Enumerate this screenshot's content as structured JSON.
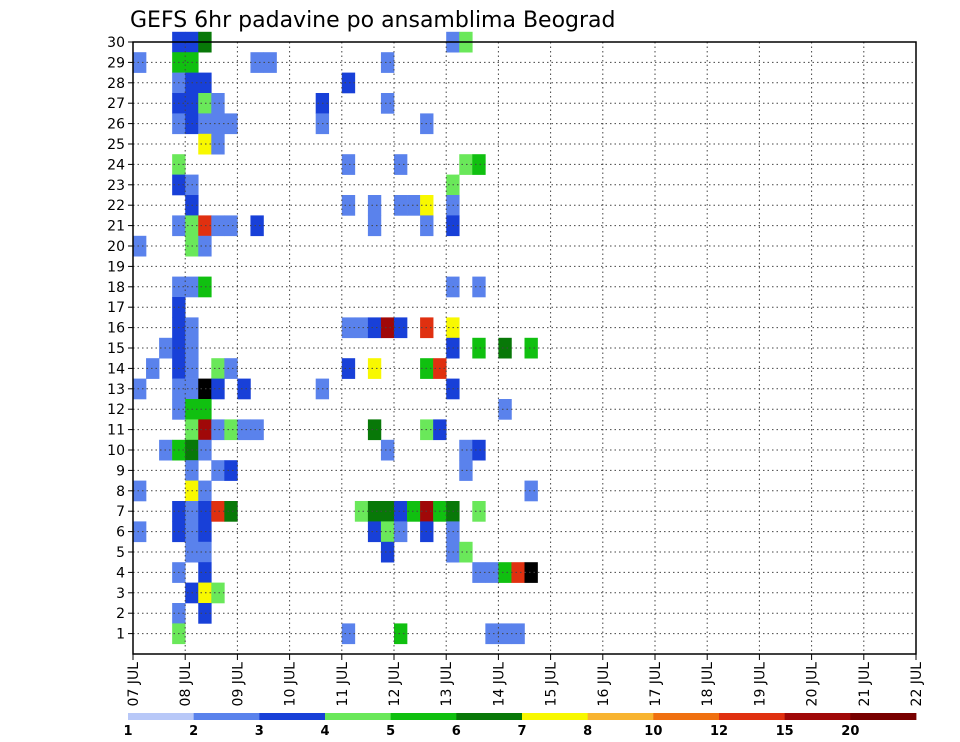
{
  "chart_data": {
    "type": "heatmap",
    "title": "GEFS 6hr padavine po ansamblima Beograd",
    "xlabel": "",
    "ylabel": "",
    "x_tick_labels": [
      "07 JUL",
      "08 JUL",
      "09 JUL",
      "10 JUL",
      "11 JUL",
      "12 JUL",
      "13 JUL",
      "14 JUL",
      "15 JUL",
      "16 JUL",
      "17 JUL",
      "18 JUL",
      "19 JUL",
      "20 JUL",
      "21 JUL",
      "22 JUL"
    ],
    "xlim": [
      0,
      60
    ],
    "y_tick_labels": [
      "1",
      "2",
      "3",
      "4",
      "5",
      "6",
      "7",
      "8",
      "9",
      "10",
      "11",
      "12",
      "13",
      "14",
      "15",
      "16",
      "17",
      "18",
      "19",
      "20",
      "21",
      "22",
      "23",
      "24",
      "25",
      "26",
      "27",
      "28",
      "29",
      "30"
    ],
    "ylim": [
      0,
      30
    ],
    "grid": true,
    "legend_position": "bottom",
    "legend": {
      "labels": [
        "1",
        "2",
        "3",
        "4",
        "5",
        "6",
        "7",
        "8",
        "10",
        "12",
        "15",
        "20"
      ],
      "colors": [
        "#b8c8f8",
        "#5a82ec",
        "#1840d8",
        "#6ae85a",
        "#10c010",
        "#087808",
        "#f8f800",
        "#f8b430",
        "#f07010",
        "#e03010",
        "#a00808",
        "#780000"
      ]
    },
    "cells": [
      [
        30,
        3,
        2
      ],
      [
        30,
        4,
        2
      ],
      [
        30,
        5,
        5
      ],
      [
        30,
        24,
        1
      ],
      [
        30,
        25,
        3
      ],
      [
        29,
        0,
        1
      ],
      [
        29,
        3,
        4
      ],
      [
        29,
        4,
        4
      ],
      [
        29,
        9,
        1
      ],
      [
        29,
        10,
        1
      ],
      [
        29,
        19,
        1
      ],
      [
        28,
        3,
        1
      ],
      [
        28,
        4,
        2
      ],
      [
        28,
        5,
        2
      ],
      [
        28,
        16,
        2
      ],
      [
        27,
        3,
        2
      ],
      [
        27,
        4,
        2
      ],
      [
        27,
        5,
        3
      ],
      [
        27,
        6,
        1
      ],
      [
        27,
        14,
        2
      ],
      [
        27,
        19,
        1
      ],
      [
        26,
        3,
        1
      ],
      [
        26,
        4,
        2
      ],
      [
        26,
        5,
        1
      ],
      [
        26,
        6,
        1
      ],
      [
        26,
        7,
        1
      ],
      [
        26,
        14,
        1
      ],
      [
        26,
        22,
        1
      ],
      [
        25,
        5,
        6
      ],
      [
        25,
        6,
        1
      ],
      [
        24,
        3,
        3
      ],
      [
        24,
        16,
        1
      ],
      [
        24,
        20,
        1
      ],
      [
        24,
        25,
        3
      ],
      [
        24,
        26,
        4
      ],
      [
        23,
        3,
        2
      ],
      [
        23,
        4,
        1
      ],
      [
        23,
        24,
        3
      ],
      [
        22,
        4,
        2
      ],
      [
        22,
        16,
        1
      ],
      [
        22,
        18,
        1
      ],
      [
        22,
        20,
        1
      ],
      [
        22,
        21,
        1
      ],
      [
        22,
        22,
        6
      ],
      [
        22,
        24,
        1
      ],
      [
        21,
        3,
        1
      ],
      [
        21,
        4,
        3
      ],
      [
        21,
        5,
        9
      ],
      [
        21,
        6,
        1
      ],
      [
        21,
        7,
        1
      ],
      [
        21,
        9,
        2
      ],
      [
        21,
        18,
        1
      ],
      [
        21,
        22,
        1
      ],
      [
        21,
        24,
        2
      ],
      [
        20,
        0,
        1
      ],
      [
        20,
        4,
        3
      ],
      [
        20,
        5,
        1
      ],
      [
        18,
        3,
        1
      ],
      [
        18,
        4,
        1
      ],
      [
        18,
        5,
        4
      ],
      [
        18,
        24,
        1
      ],
      [
        18,
        26,
        1
      ],
      [
        17,
        3,
        2
      ],
      [
        16,
        3,
        2
      ],
      [
        16,
        4,
        1
      ],
      [
        16,
        16,
        1
      ],
      [
        16,
        17,
        1
      ],
      [
        16,
        18,
        2
      ],
      [
        16,
        19,
        10
      ],
      [
        16,
        20,
        2
      ],
      [
        16,
        22,
        9
      ],
      [
        16,
        24,
        6
      ],
      [
        15,
        2,
        1
      ],
      [
        15,
        3,
        2
      ],
      [
        15,
        4,
        1
      ],
      [
        15,
        24,
        2
      ],
      [
        15,
        26,
        4
      ],
      [
        15,
        28,
        5
      ],
      [
        15,
        30,
        4
      ],
      [
        14,
        1,
        1
      ],
      [
        14,
        3,
        2
      ],
      [
        14,
        4,
        1
      ],
      [
        14,
        6,
        3
      ],
      [
        14,
        7,
        1
      ],
      [
        14,
        16,
        2
      ],
      [
        14,
        18,
        6
      ],
      [
        14,
        22,
        4
      ],
      [
        14,
        23,
        9
      ],
      [
        13,
        0,
        1
      ],
      [
        13,
        3,
        1
      ],
      [
        13,
        4,
        1
      ],
      [
        13,
        5,
        14
      ],
      [
        13,
        6,
        2
      ],
      [
        13,
        8,
        2
      ],
      [
        13,
        14,
        1
      ],
      [
        13,
        24,
        2
      ],
      [
        12,
        3,
        1
      ],
      [
        12,
        4,
        4
      ],
      [
        12,
        5,
        4
      ],
      [
        12,
        28,
        1
      ],
      [
        11,
        4,
        3
      ],
      [
        11,
        5,
        10
      ],
      [
        11,
        6,
        1
      ],
      [
        11,
        7,
        3
      ],
      [
        11,
        8,
        1
      ],
      [
        11,
        9,
        1
      ],
      [
        11,
        18,
        5
      ],
      [
        11,
        22,
        3
      ],
      [
        11,
        23,
        2
      ],
      [
        10,
        2,
        1
      ],
      [
        10,
        3,
        4
      ],
      [
        10,
        4,
        5
      ],
      [
        10,
        5,
        1
      ],
      [
        10,
        19,
        1
      ],
      [
        10,
        25,
        1
      ],
      [
        10,
        26,
        2
      ],
      [
        9,
        4,
        1
      ],
      [
        9,
        6,
        1
      ],
      [
        9,
        7,
        2
      ],
      [
        9,
        25,
        1
      ],
      [
        8,
        0,
        1
      ],
      [
        8,
        4,
        6
      ],
      [
        8,
        5,
        1
      ],
      [
        8,
        30,
        1
      ],
      [
        7,
        3,
        2
      ],
      [
        7,
        4,
        1
      ],
      [
        7,
        5,
        2
      ],
      [
        7,
        6,
        9
      ],
      [
        7,
        7,
        5
      ],
      [
        7,
        17,
        3
      ],
      [
        7,
        18,
        5
      ],
      [
        7,
        19,
        5
      ],
      [
        7,
        20,
        2
      ],
      [
        7,
        21,
        4
      ],
      [
        7,
        22,
        10
      ],
      [
        7,
        23,
        4
      ],
      [
        7,
        24,
        5
      ],
      [
        7,
        26,
        3
      ],
      [
        6,
        0,
        1
      ],
      [
        6,
        3,
        2
      ],
      [
        6,
        4,
        1
      ],
      [
        6,
        5,
        2
      ],
      [
        6,
        18,
        2
      ],
      [
        6,
        19,
        3
      ],
      [
        6,
        20,
        1
      ],
      [
        6,
        22,
        2
      ],
      [
        6,
        24,
        1
      ],
      [
        5,
        4,
        1
      ],
      [
        5,
        5,
        1
      ],
      [
        5,
        19,
        2
      ],
      [
        5,
        24,
        1
      ],
      [
        5,
        25,
        3
      ],
      [
        4,
        3,
        1
      ],
      [
        4,
        5,
        2
      ],
      [
        4,
        26,
        1
      ],
      [
        4,
        27,
        1
      ],
      [
        4,
        28,
        4
      ],
      [
        4,
        29,
        9
      ],
      [
        4,
        30,
        12
      ],
      [
        3,
        4,
        2
      ],
      [
        3,
        5,
        6
      ],
      [
        3,
        6,
        3
      ],
      [
        2,
        3,
        1
      ],
      [
        2,
        5,
        2
      ],
      [
        1,
        3,
        3
      ],
      [
        1,
        16,
        1
      ],
      [
        1,
        20,
        4
      ],
      [
        1,
        27,
        1
      ],
      [
        1,
        28,
        1
      ],
      [
        1,
        29,
        1
      ]
    ]
  }
}
